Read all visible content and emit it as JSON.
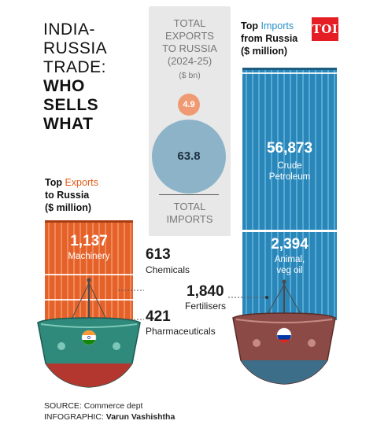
{
  "title": {
    "line1": "INDIA-",
    "line2": "RUSSIA",
    "line3": "TRADE:",
    "line4": "WHO",
    "line5": "SELLS",
    "line6": "WHAT"
  },
  "totals": {
    "exports_label_1": "TOTAL",
    "exports_label_2": "EXPORTS",
    "exports_label_3": "TO RUSSIA",
    "period": "(2024-25)",
    "unit": "($ bn)",
    "exports_value": "4.9",
    "imports_value": "63.8",
    "imports_label_1": "TOTAL",
    "imports_label_2": "IMPORTS"
  },
  "imports": {
    "heading_prefix": "Top",
    "heading_accent": "Imports",
    "heading_line2": "from Russia",
    "heading_line3": "($ million)",
    "items": [
      {
        "value": "56,873",
        "label_1": "Crude",
        "label_2": "Petroleum"
      },
      {
        "value": "2,394",
        "label_1": "Animal,",
        "label_2": "veg oil"
      },
      {
        "value": "1,840",
        "label_1": "Fertilisers"
      }
    ]
  },
  "exports": {
    "heading_prefix": "Top",
    "heading_accent": "Exports",
    "heading_line2": "to Russia",
    "heading_line3": "($ million)",
    "items": [
      {
        "value": "1,137",
        "label": "Machinery"
      },
      {
        "value": "613",
        "label": "Chemicals"
      },
      {
        "value": "421",
        "label": "Pharmaceuticals"
      }
    ]
  },
  "logo_text": "TOI",
  "footer": {
    "source": "SOURCE: Commerce dept",
    "infographic_prefix": "INFOGRAPHIC:",
    "infographic_author": "Varun Vashishtha"
  },
  "colors": {
    "export_accent": "#e25b1b",
    "import_accent": "#2b8fc8",
    "exports_total_dot": "#f09a73",
    "imports_total_dot": "#8db3c8",
    "india_ship_hull": "#2f8a7c",
    "russia_ship_hull": "#8b4a45"
  }
}
